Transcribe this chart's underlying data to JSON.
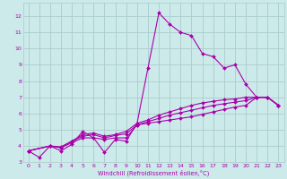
{
  "xlabel": "Windchill (Refroidissement éolien,°C)",
  "bg_color": "#cceaea",
  "grid_color": "#aacccc",
  "line_color": "#aa00aa",
  "xlim": [
    -0.5,
    23.5
  ],
  "ylim": [
    3.0,
    12.8
  ],
  "xticks": [
    0,
    1,
    2,
    3,
    4,
    5,
    6,
    7,
    8,
    9,
    10,
    11,
    12,
    13,
    14,
    15,
    16,
    17,
    18,
    19,
    20,
    21,
    22,
    23
  ],
  "yticks": [
    3,
    4,
    5,
    6,
    7,
    8,
    9,
    10,
    11,
    12
  ],
  "series1": [
    [
      0,
      3.7
    ],
    [
      1,
      3.3
    ],
    [
      2,
      4.0
    ],
    [
      3,
      3.7
    ],
    [
      4,
      4.1
    ],
    [
      5,
      4.9
    ],
    [
      6,
      4.5
    ],
    [
      7,
      3.6
    ],
    [
      8,
      4.4
    ],
    [
      9,
      4.3
    ],
    [
      10,
      5.4
    ],
    [
      11,
      8.8
    ],
    [
      12,
      12.2
    ],
    [
      13,
      11.5
    ],
    [
      14,
      11.0
    ],
    [
      15,
      10.8
    ],
    [
      16,
      9.7
    ],
    [
      17,
      9.5
    ],
    [
      18,
      8.8
    ],
    [
      19,
      9.0
    ],
    [
      20,
      7.8
    ],
    [
      21,
      7.0
    ],
    [
      22,
      7.0
    ],
    [
      23,
      6.5
    ]
  ],
  "series2": [
    [
      0,
      3.7
    ],
    [
      2,
      4.0
    ],
    [
      3,
      3.9
    ],
    [
      4,
      4.2
    ],
    [
      5,
      4.5
    ],
    [
      6,
      4.5
    ],
    [
      7,
      4.4
    ],
    [
      8,
      4.5
    ],
    [
      9,
      4.5
    ],
    [
      10,
      5.3
    ],
    [
      11,
      5.4
    ],
    [
      12,
      5.5
    ],
    [
      13,
      5.6
    ],
    [
      14,
      5.7
    ],
    [
      15,
      5.8
    ],
    [
      16,
      5.95
    ],
    [
      17,
      6.1
    ],
    [
      18,
      6.25
    ],
    [
      19,
      6.4
    ],
    [
      20,
      6.5
    ],
    [
      21,
      7.0
    ],
    [
      22,
      7.0
    ],
    [
      23,
      6.5
    ]
  ],
  "series3": [
    [
      0,
      3.7
    ],
    [
      2,
      4.0
    ],
    [
      3,
      3.9
    ],
    [
      4,
      4.3
    ],
    [
      5,
      4.6
    ],
    [
      6,
      4.7
    ],
    [
      7,
      4.5
    ],
    [
      8,
      4.65
    ],
    [
      9,
      4.75
    ],
    [
      10,
      5.3
    ],
    [
      11,
      5.5
    ],
    [
      12,
      5.7
    ],
    [
      13,
      5.9
    ],
    [
      14,
      6.05
    ],
    [
      15,
      6.2
    ],
    [
      16,
      6.35
    ],
    [
      17,
      6.5
    ],
    [
      18,
      6.6
    ],
    [
      19,
      6.7
    ],
    [
      20,
      6.8
    ],
    [
      21,
      7.0
    ],
    [
      22,
      7.0
    ],
    [
      23,
      6.5
    ]
  ],
  "series4": [
    [
      0,
      3.7
    ],
    [
      2,
      4.0
    ],
    [
      3,
      3.95
    ],
    [
      4,
      4.3
    ],
    [
      5,
      4.7
    ],
    [
      6,
      4.8
    ],
    [
      7,
      4.6
    ],
    [
      8,
      4.7
    ],
    [
      9,
      4.9
    ],
    [
      10,
      5.4
    ],
    [
      11,
      5.6
    ],
    [
      12,
      5.9
    ],
    [
      13,
      6.1
    ],
    [
      14,
      6.3
    ],
    [
      15,
      6.5
    ],
    [
      16,
      6.65
    ],
    [
      17,
      6.75
    ],
    [
      18,
      6.85
    ],
    [
      19,
      6.9
    ],
    [
      20,
      7.0
    ],
    [
      21,
      7.0
    ],
    [
      22,
      7.0
    ],
    [
      23,
      6.5
    ]
  ]
}
